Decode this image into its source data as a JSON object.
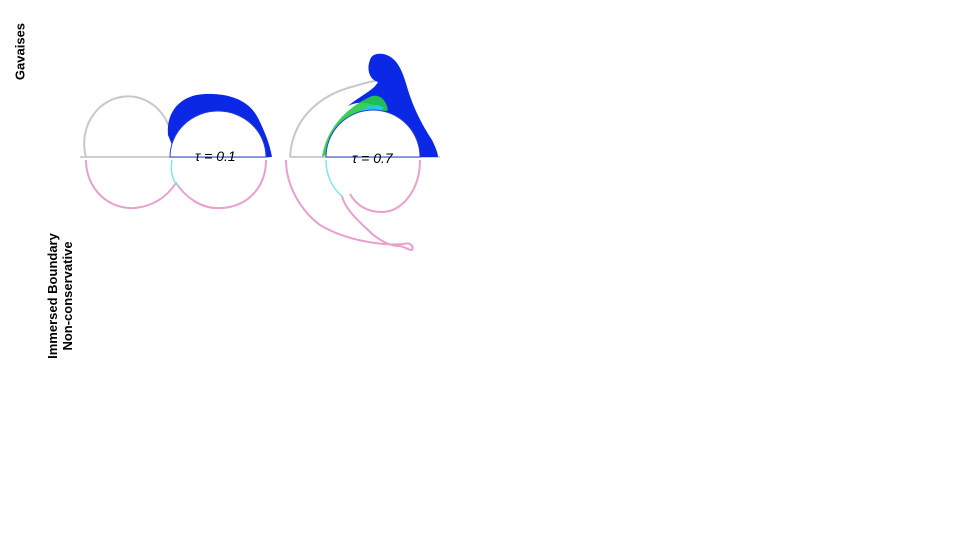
{
  "row_labels": {
    "top": "Gavaises",
    "bottom_line1": "Immersed Boundary",
    "bottom_line2": "Non-conservative"
  },
  "panels": [
    {
      "time_label": "τ = 0.1"
    },
    {
      "time_label": "τ = 0.7"
    }
  ],
  "colors": {
    "outline_gray": "#c8c8c8",
    "outline_pink": "#e8a0cc",
    "jet_blue": "#0a28e6",
    "jet_cyan": "#22c8e8",
    "jet_green": "#22cc44"
  }
}
